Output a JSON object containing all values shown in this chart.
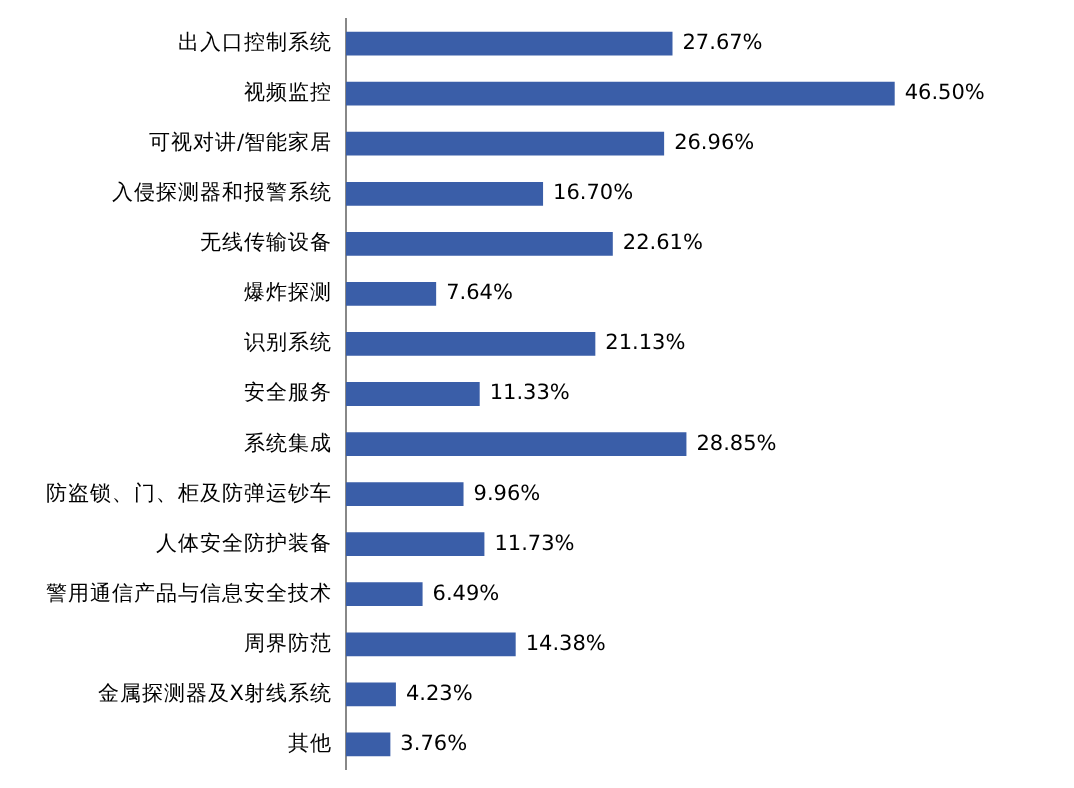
{
  "chart_data": {
    "type": "bar",
    "orientation": "horizontal",
    "legend": false,
    "color": "#3a5ea8",
    "categories": [
      "出入口控制系统",
      "视频监控",
      "可视对讲/智能家居",
      "入侵探测器和报警系统",
      "无线传输设备",
      "爆炸探测",
      "识别系统",
      "安全服务",
      "系统集成",
      "防盗锁、门、柜及防弹运钞车",
      "人体安全防护装备",
      "警用通信产品与信息安全技术",
      "周界防范",
      "金属探测器及X射线系统",
      "其他"
    ],
    "values": [
      27.67,
      46.5,
      26.96,
      16.7,
      22.61,
      7.64,
      21.13,
      11.33,
      28.85,
      9.96,
      11.73,
      6.49,
      14.38,
      4.23,
      3.76
    ],
    "value_labels": [
      "27.67%",
      "46.50%",
      "26.96%",
      "16.70%",
      "22.61%",
      "7.64%",
      "21.13%",
      "11.33%",
      "28.85%",
      "9.96%",
      "11.73%",
      "6.49%",
      "14.38%",
      "4.23%",
      "3.76%"
    ]
  }
}
